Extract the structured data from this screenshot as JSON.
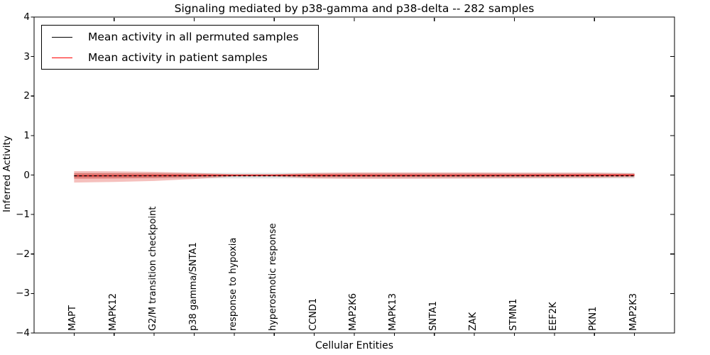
{
  "chart_data": {
    "type": "line",
    "title": "Signaling mediated by p38-gamma and p38-delta -- 282 samples",
    "xlabel": "Cellular Entities",
    "ylabel": "Inferred Activity",
    "ylim": [
      -4,
      4
    ],
    "xlim": [
      0,
      16
    ],
    "grid": false,
    "legend_position": "upper-left",
    "ytick_values": [
      4,
      3,
      2,
      1,
      0,
      -1,
      -2,
      -3,
      -4
    ],
    "ytick_labels": [
      "4",
      "3",
      "2",
      "1",
      "0",
      "−1",
      "−2",
      "−3",
      "−4"
    ],
    "categories": [
      "MAPT",
      "MAPK12",
      "G2/M transition checkpoint",
      "p38 gamma/SNTA1",
      "response to hypoxia",
      "hyperosmotic response",
      "CCND1",
      "MAP2K6",
      "MAPK13",
      "SNTA1",
      "ZAK",
      "STMN1",
      "EEF2K",
      "PKN1",
      "MAP2K3"
    ],
    "top_tick_categories": [
      2,
      4,
      6,
      8,
      10,
      12,
      14
    ],
    "series": [
      {
        "name": "Mean activity in all permuted samples",
        "color": "#000000",
        "style": "dashed",
        "values": [
          -0.02,
          -0.02,
          -0.02,
          -0.02,
          -0.02,
          -0.02,
          -0.02,
          -0.02,
          -0.02,
          -0.02,
          -0.02,
          -0.02,
          -0.02,
          -0.02,
          -0.02
        ]
      },
      {
        "name": "Mean activity in patient samples",
        "color": "#e02020",
        "style": "solid",
        "values": [
          -0.02,
          -0.018,
          -0.015,
          -0.012,
          -0.008,
          -0.008,
          -0.01,
          -0.012,
          -0.012,
          -0.012,
          -0.01,
          -0.01,
          -0.008,
          -0.006,
          -0.002
        ]
      }
    ],
    "bands": [
      {
        "name": "permuted-samples-range",
        "color": "rgba(90,90,90,0.18)",
        "upper": [
          0.055,
          0.055,
          0.055,
          0.055,
          0.055,
          0.055,
          0.055,
          0.055,
          0.055,
          0.055,
          0.055,
          0.055,
          0.055,
          0.055,
          0.055
        ],
        "lower": [
          -0.085,
          -0.085,
          -0.085,
          -0.085,
          -0.085,
          -0.085,
          -0.085,
          -0.085,
          -0.085,
          -0.085,
          -0.085,
          -0.085,
          -0.085,
          -0.085,
          -0.085
        ]
      },
      {
        "name": "patient-samples-range-outer",
        "color": "rgba(222,45,38,0.30)",
        "upper": [
          0.1,
          0.095,
          0.08,
          0.055,
          0.02,
          0.02,
          0.055,
          0.065,
          0.065,
          0.065,
          0.065,
          0.06,
          0.06,
          0.06,
          0.045
        ],
        "lower": [
          -0.19,
          -0.175,
          -0.15,
          -0.1,
          -0.035,
          -0.035,
          -0.085,
          -0.095,
          -0.095,
          -0.09,
          -0.085,
          -0.08,
          -0.075,
          -0.07,
          -0.055
        ]
      },
      {
        "name": "patient-samples-range-inner",
        "color": "rgba(222,45,38,0.34)",
        "upper": [
          0.05,
          0.048,
          0.04,
          0.028,
          0.01,
          0.01,
          0.028,
          0.033,
          0.033,
          0.033,
          0.033,
          0.03,
          0.03,
          0.03,
          0.023
        ],
        "lower": [
          -0.095,
          -0.088,
          -0.075,
          -0.05,
          -0.018,
          -0.018,
          -0.043,
          -0.048,
          -0.048,
          -0.045,
          -0.043,
          -0.04,
          -0.038,
          -0.035,
          -0.028
        ]
      }
    ]
  }
}
